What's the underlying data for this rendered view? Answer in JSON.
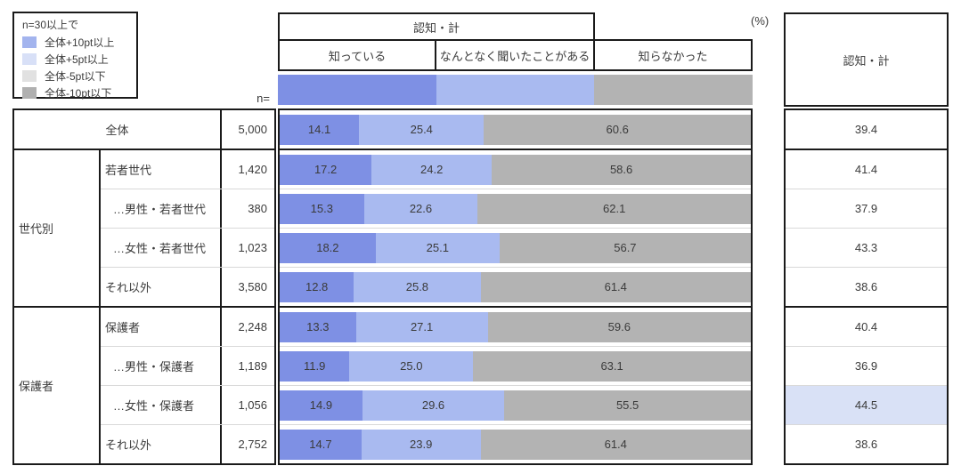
{
  "labels": {
    "unit": "(%)",
    "n": "n="
  },
  "legend": {
    "title": "n=30以上で",
    "items": [
      {
        "label": "全体+10pt以上",
        "color": "#A3B4EE"
      },
      {
        "label": "全体+5pt以上",
        "color": "#D8E0F7"
      },
      {
        "label": "全体-5pt以下",
        "color": "#E1E1E1"
      },
      {
        "label": "全体-10pt以下",
        "color": "#B0B0B0"
      }
    ]
  },
  "header": {
    "group_title": "認知・計",
    "columns": [
      "知っている",
      "なんとなく聞いたことがある",
      "知らなかった"
    ],
    "column_colors": [
      "#7E90E4",
      "#A9BAF0",
      "#B3B3B3"
    ]
  },
  "summary": {
    "title": "認知・計",
    "highlight_color": "#D9E1F6"
  },
  "row_groups": [
    {
      "name": "",
      "row_indexes": [
        0
      ]
    },
    {
      "name": "世代別",
      "row_indexes": [
        1,
        2,
        3,
        4
      ]
    },
    {
      "name": "保護者",
      "row_indexes": [
        5,
        6,
        7,
        8
      ]
    }
  ],
  "chart_data": {
    "type": "bar",
    "stacked": true,
    "orientation": "horizontal",
    "unit": "%",
    "xlim": [
      0,
      100
    ],
    "series_labels": [
      "知っている",
      "なんとなく聞いたことがある",
      "知らなかった"
    ],
    "rows": [
      {
        "group": "",
        "label": "全体",
        "n": "5,000",
        "values": [
          14.1,
          25.4,
          60.6
        ],
        "total": 39.4,
        "highlight": false
      },
      {
        "group": "世代別",
        "label": "若者世代",
        "n": "1,420",
        "values": [
          17.2,
          24.2,
          58.6
        ],
        "total": 41.4,
        "highlight": false
      },
      {
        "group": "世代別",
        "label": "…男性・若者世代",
        "n": "380",
        "values": [
          15.3,
          22.6,
          62.1
        ],
        "total": 37.9,
        "highlight": false
      },
      {
        "group": "世代別",
        "label": "…女性・若者世代",
        "n": "1,023",
        "values": [
          18.2,
          25.1,
          56.7
        ],
        "total": 43.3,
        "highlight": false
      },
      {
        "group": "世代別",
        "label": "それ以外",
        "n": "3,580",
        "values": [
          12.8,
          25.8,
          61.4
        ],
        "total": 38.6,
        "highlight": false
      },
      {
        "group": "保護者",
        "label": "保護者",
        "n": "2,248",
        "values": [
          13.3,
          27.1,
          59.6
        ],
        "total": 40.4,
        "highlight": false
      },
      {
        "group": "保護者",
        "label": "…男性・保護者",
        "n": "1,189",
        "values": [
          11.9,
          25.0,
          63.1
        ],
        "total": 36.9,
        "highlight": false
      },
      {
        "group": "保護者",
        "label": "…女性・保護者",
        "n": "1,056",
        "values": [
          14.9,
          29.6,
          55.5
        ],
        "total": 44.5,
        "highlight": true
      },
      {
        "group": "保護者",
        "label": "それ以外",
        "n": "2,752",
        "values": [
          14.7,
          23.9,
          61.4
        ],
        "total": 38.6,
        "highlight": false
      }
    ]
  }
}
